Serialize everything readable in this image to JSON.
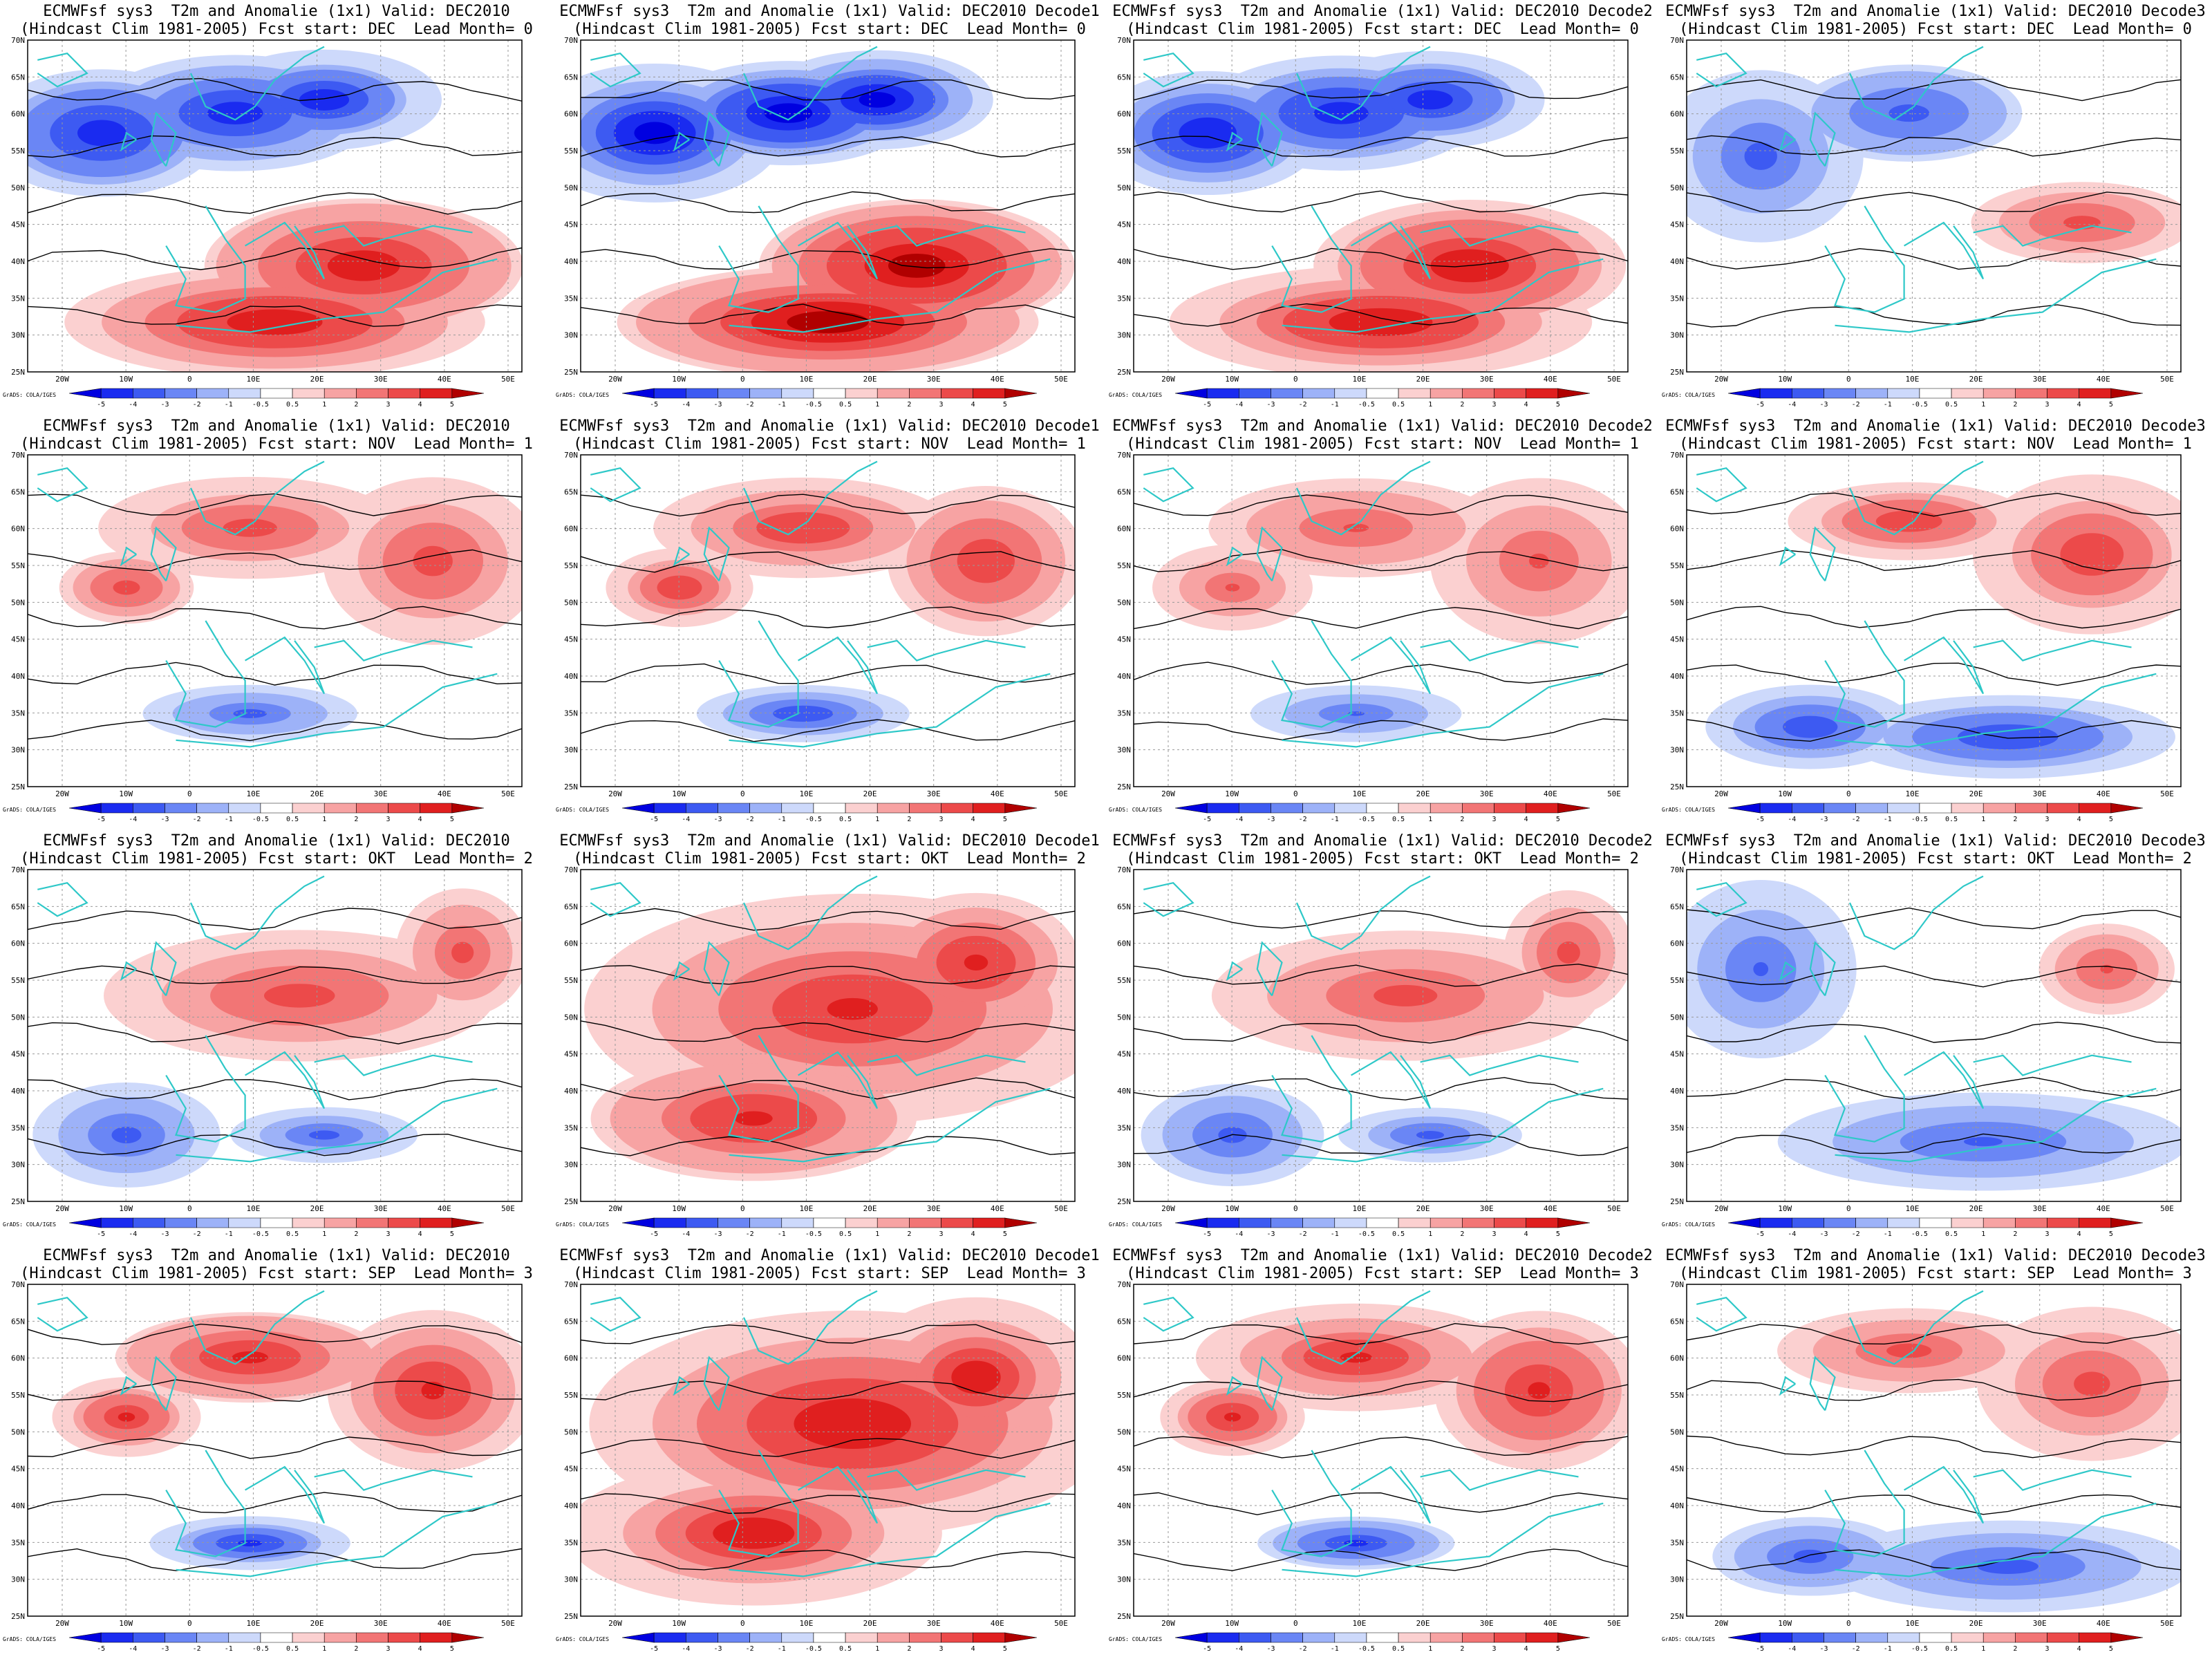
{
  "figure": {
    "title_template_line1": "ECMWFsf sys3  T2m and Anomalie (1x1) Valid: DEC2010",
    "title_template_line2": "(Hindcast Clim 1981-2005) Fcst start: {start}  Lead Month= {lead}",
    "credit": "GrADS: COLA/IGES",
    "lat_ticks": [
      "25N",
      "30N",
      "35N",
      "40N",
      "45N",
      "50N",
      "55N",
      "60N",
      "65N",
      "70N"
    ],
    "lon_ticks": [
      "20W",
      "10W",
      "0",
      "10E",
      "20E",
      "30E",
      "40E",
      "50E"
    ],
    "colorbar_labels": [
      "-5",
      "-4",
      "-3",
      "-2",
      "-1",
      "-0.5",
      "0.5",
      "1",
      "2",
      "3",
      "4",
      "5"
    ],
    "colorbar_colors": [
      "#0000e0",
      "#1a2bf0",
      "#3d5af2",
      "#6a86f5",
      "#9db2f8",
      "#cdd9fb",
      "#ffffff",
      "#fbd0d0",
      "#f7a3a3",
      "#f27575",
      "#ec4a4a",
      "#e01f1f",
      "#b00000"
    ],
    "coastline_color": "#2ec8c8",
    "contour_color": "#000000"
  },
  "panels": [
    {
      "line1": "ECMWFsf sys3  T2m and Anomalie (1x1) Valid: DEC2010",
      "line2": "(Hindcast Clim 1981-2005) Fcst start: DEC  Lead Month= 0",
      "pattern": "cold-north-warm-south",
      "intensity": 0.85
    },
    {
      "line1": "ECMWFsf sys3  T2m and Anomalie (1x1) Valid: DEC2010 Decode1",
      "line2": "(Hindcast Clim 1981-2005) Fcst start: DEC  Lead Month= 0",
      "pattern": "cold-north-warm-south",
      "intensity": 1.0
    },
    {
      "line1": "ECMWFsf sys3  T2m and Anomalie (1x1) Valid: DEC2010 Decode2",
      "line2": "(Hindcast Clim 1981-2005) Fcst start: DEC  Lead Month= 0",
      "pattern": "cold-north-warm-south",
      "intensity": 0.85
    },
    {
      "line1": "ECMWFsf sys3  T2m and Anomalie (1x1) Valid: DEC2010 Decode3",
      "line2": "(Hindcast Clim 1981-2005) Fcst start: DEC  Lead Month= 0",
      "pattern": "cold-north-weak",
      "intensity": 0.6
    },
    {
      "line1": "ECMWFsf sys3  T2m and Anomalie (1x1) Valid: DEC2010",
      "line2": "(Hindcast Clim 1981-2005) Fcst start: NOV  Lead Month= 1",
      "pattern": "warm-east",
      "intensity": 0.6
    },
    {
      "line1": "ECMWFsf sys3  T2m and Anomalie (1x1) Valid: DEC2010 Decode1",
      "line2": "(Hindcast Clim 1981-2005) Fcst start: NOV  Lead Month= 1",
      "pattern": "warm-east",
      "intensity": 0.7
    },
    {
      "line1": "ECMWFsf sys3  T2m and Anomalie (1x1) Valid: DEC2010 Decode2",
      "line2": "(Hindcast Clim 1981-2005) Fcst start: NOV  Lead Month= 1",
      "pattern": "warm-east",
      "intensity": 0.55
    },
    {
      "line1": "ECMWFsf sys3  T2m and Anomalie (1x1) Valid: DEC2010 Decode3",
      "line2": "(Hindcast Clim 1981-2005) Fcst start: NOV  Lead Month= 1",
      "pattern": "warm-east-cold-south",
      "intensity": 0.7
    },
    {
      "line1": "ECMWFsf sys3  T2m and Anomalie (1x1) Valid: DEC2010",
      "line2": "(Hindcast Clim 1981-2005) Fcst start: OKT  Lead Month= 2",
      "pattern": "warm-center",
      "intensity": 0.6
    },
    {
      "line1": "ECMWFsf sys3  T2m and Anomalie (1x1) Valid: DEC2010 Decode1",
      "line2": "(Hindcast Clim 1981-2005) Fcst start: OKT  Lead Month= 2",
      "pattern": "warm-broad",
      "intensity": 0.75
    },
    {
      "line1": "ECMWFsf sys3  T2m and Anomalie (1x1) Valid: DEC2010 Decode2",
      "line2": "(Hindcast Clim 1981-2005) Fcst start: OKT  Lead Month= 2",
      "pattern": "warm-center",
      "intensity": 0.6
    },
    {
      "line1": "ECMWFsf sys3  T2m and Anomalie (1x1) Valid: DEC2010 Decode3",
      "line2": "(Hindcast Clim 1981-2005) Fcst start: OKT  Lead Month= 2",
      "pattern": "cold-west-south",
      "intensity": 0.55
    },
    {
      "line1": "ECMWFsf sys3  T2m and Anomalie (1x1) Valid: DEC2010",
      "line2": "(Hindcast Clim 1981-2005) Fcst start: SEP  Lead Month= 3",
      "pattern": "warm-east",
      "intensity": 0.75
    },
    {
      "line1": "ECMWFsf sys3  T2m and Anomalie (1x1) Valid: DEC2010 Decode1",
      "line2": "(Hindcast Clim 1981-2005) Fcst start: SEP  Lead Month= 3",
      "pattern": "warm-broad",
      "intensity": 0.85
    },
    {
      "line1": "ECMWFsf sys3  T2m and Anomalie (1x1) Valid: DEC2010 Decode2",
      "line2": "(Hindcast Clim 1981-2005) Fcst start: SEP  Lead Month= 3",
      "pattern": "warm-east",
      "intensity": 0.75
    },
    {
      "line1": "ECMWFsf sys3  T2m and Anomalie (1x1) Valid: DEC2010 Decode3",
      "line2": "(Hindcast Clim 1981-2005) Fcst start: SEP  Lead Month= 3",
      "pattern": "warm-east-cold-south",
      "intensity": 0.6
    }
  ]
}
